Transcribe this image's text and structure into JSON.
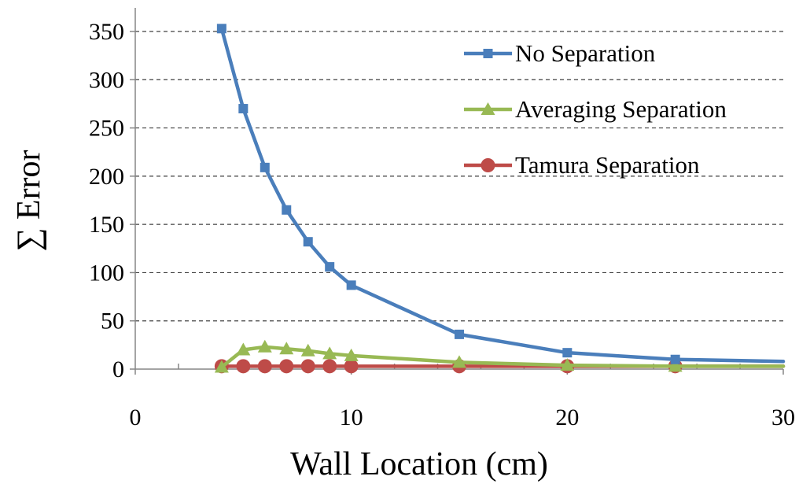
{
  "chart_data": {
    "type": "line",
    "title": "",
    "xlabel": "Wall Location (cm)",
    "ylabel": "∑ Error",
    "xlim": [
      0,
      30
    ],
    "ylim": [
      0,
      350
    ],
    "xticks": [
      0,
      10,
      20,
      30
    ],
    "xticks_minor": [
      2,
      4,
      6,
      8,
      12,
      14,
      16,
      18,
      22,
      24,
      26,
      28
    ],
    "yticks": [
      0,
      50,
      100,
      150,
      200,
      250,
      300,
      350
    ],
    "grid": "horizontal dashed",
    "legend_position": "top-right",
    "series": [
      {
        "name": "No Separation",
        "color": "#4a7ebb",
        "marker": "square",
        "x": [
          4,
          5,
          6,
          7,
          8,
          9,
          10,
          15,
          20,
          25,
          30
        ],
        "values": [
          353,
          270,
          209,
          165,
          132,
          106,
          87,
          36,
          17,
          10,
          8
        ]
      },
      {
        "name": "Averaging Separation",
        "color": "#98b954",
        "marker": "triangle",
        "x": [
          4,
          5,
          6,
          7,
          8,
          9,
          10,
          15,
          20,
          25,
          30
        ],
        "values": [
          2,
          20,
          23,
          21,
          19,
          16,
          14,
          7,
          4,
          3,
          3
        ]
      },
      {
        "name": "Tamura Separation",
        "color": "#be4b48",
        "marker": "circle",
        "x": [
          4,
          5,
          6,
          7,
          8,
          9,
          10,
          15,
          20,
          25,
          30
        ],
        "values": [
          3,
          3,
          3,
          3,
          3,
          3,
          3,
          3,
          3,
          3,
          3
        ]
      }
    ]
  }
}
